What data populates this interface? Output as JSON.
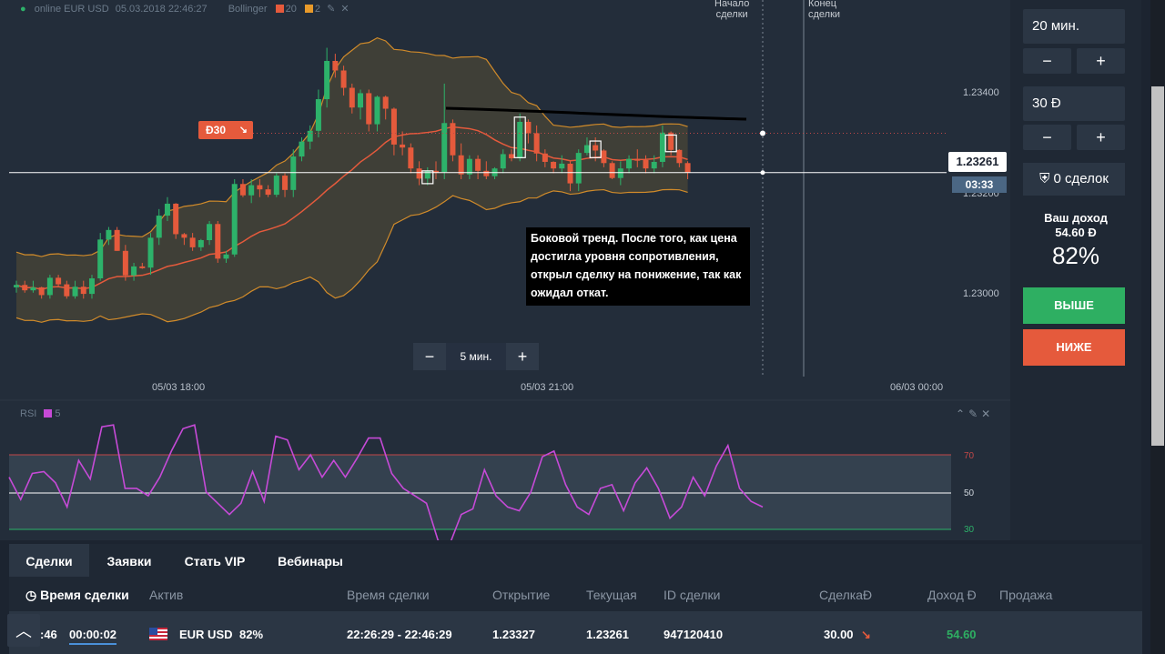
{
  "topbar": {
    "asset": "online EUR USD",
    "datetime": "05.03.2018 22:46:27",
    "indicator": "Bollinger",
    "param1": "20",
    "param2": "2",
    "color1": "#e55a3c",
    "color2": "#e89a2a"
  },
  "markers": {
    "start_line1": "Начало",
    "start_line2": "сделки",
    "end_line1": "Конец",
    "end_line2": "сделки"
  },
  "price_axis": [
    "1.23400",
    "1.23200",
    "1.23000"
  ],
  "current_price": "1.23261",
  "countdown": "03:33",
  "time_axis": [
    "05/03 18:00",
    "05/03 21:00",
    "06/03 00:00"
  ],
  "trade_badge": {
    "label": "Đ30",
    "arrow": "↘"
  },
  "annotation": "Боковой тренд. После того, как цена достигла уровня сопротивления, открыл сделку на понижение, так как ожидал откат.",
  "zoom": {
    "minus": "−",
    "label": "5 мин.",
    "plus": "+"
  },
  "rsi": {
    "name": "RSI",
    "period": "5",
    "levels": [
      "70",
      "50",
      "30"
    ]
  },
  "panel": {
    "time_value": "20 мин.",
    "amount_value": "30 Đ",
    "minus": "−",
    "plus": "+",
    "deals": "0 сделок",
    "income_label": "Ваш доход",
    "income_value": "54.60 Đ",
    "percent": "82%",
    "up_label": "ВЫШЕ",
    "down_label": "НИЖЕ",
    "up_color": "#2eaf62",
    "down_color": "#e55a3c"
  },
  "bottom": {
    "tabs": [
      "Сделки",
      "Заявки",
      "Стать VIP",
      "Вебинары"
    ],
    "headers": [
      "Время сделки",
      "Актив",
      "Время сделки",
      "Открытие",
      "Текущая",
      "ID сделки",
      "СделкаĐ",
      "Доход Đ",
      "Продажа"
    ],
    "row": {
      "time_left_cut": ":46",
      "timer": "00:00:02",
      "asset": "EUR USD",
      "percent": "82%",
      "range": "22:26:29 - 22:46:29",
      "open": "1.23327",
      "current": "1.23261",
      "id": "947120410",
      "amount": "30.00",
      "income": "54.60"
    }
  },
  "chart_data": {
    "type": "candlestick",
    "note": "",
    "price_range": [
      1.2288,
      1.2355
    ],
    "x_labels": [
      "05/03 18:00",
      "05/03 21:00",
      "06/03 00:00"
    ],
    "candles": [
      [
        1.23069,
        1.23073,
        1.2306,
        1.2308
      ],
      [
        1.23073,
        1.23064,
        1.2306,
        1.2308
      ],
      [
        1.23064,
        1.23069,
        1.2306,
        1.2308
      ],
      [
        1.23069,
        1.23056,
        1.2305,
        1.2307
      ],
      [
        1.23056,
        1.23085,
        1.2305,
        1.2309
      ],
      [
        1.23085,
        1.23074,
        1.2307,
        1.2309
      ],
      [
        1.23074,
        1.23054,
        1.2305,
        1.2308
      ],
      [
        1.23054,
        1.2307,
        1.2305,
        1.2308
      ],
      [
        1.2307,
        1.23058,
        1.2305,
        1.2308
      ],
      [
        1.23058,
        1.23084,
        1.2305,
        1.2309
      ],
      [
        1.23084,
        1.23149,
        1.2308,
        1.2316
      ],
      [
        1.23149,
        1.23165,
        1.2314,
        1.2317
      ],
      [
        1.23165,
        1.2313,
        1.2313,
        1.2317
      ],
      [
        1.2313,
        1.23089,
        1.2308,
        1.2314
      ],
      [
        1.23089,
        1.23104,
        1.2308,
        1.2311
      ],
      [
        1.23104,
        1.23102,
        1.231,
        1.2311
      ],
      [
        1.23102,
        1.23152,
        1.2309,
        1.2316
      ],
      [
        1.23152,
        1.23189,
        1.2314,
        1.232
      ],
      [
        1.23189,
        1.23209,
        1.2318,
        1.2322
      ],
      [
        1.23209,
        1.23158,
        1.2315,
        1.2321
      ],
      [
        1.23158,
        1.23152,
        1.2314,
        1.2316
      ],
      [
        1.23152,
        1.23136,
        1.2313,
        1.2316
      ],
      [
        1.23136,
        1.23148,
        1.2313,
        1.2315
      ],
      [
        1.23148,
        1.23175,
        1.2314,
        1.2318
      ],
      [
        1.23175,
        1.23117,
        1.2311,
        1.2318
      ],
      [
        1.23117,
        1.23124,
        1.2311,
        1.2313
      ],
      [
        1.23124,
        1.23242,
        1.2312,
        1.2325
      ],
      [
        1.23242,
        1.23223,
        1.2322,
        1.2325
      ],
      [
        1.23223,
        1.2324,
        1.2321,
        1.2325
      ],
      [
        1.2324,
        1.23233,
        1.2322,
        1.2325
      ],
      [
        1.23233,
        1.23224,
        1.2322,
        1.2324
      ],
      [
        1.23224,
        1.23256,
        1.2322,
        1.2326
      ],
      [
        1.23256,
        1.23232,
        1.2322,
        1.2326
      ],
      [
        1.23232,
        1.23288,
        1.2322,
        1.233
      ],
      [
        1.23288,
        1.23313,
        1.2328,
        1.2332
      ],
      [
        1.23313,
        1.23331,
        1.233,
        1.2334
      ],
      [
        1.23331,
        1.23384,
        1.2332,
        1.234
      ],
      [
        1.23384,
        1.23448,
        1.2337,
        1.2347
      ],
      [
        1.23448,
        1.23432,
        1.2342,
        1.2346
      ],
      [
        1.23432,
        1.23403,
        1.2339,
        1.2344
      ],
      [
        1.23403,
        1.2337,
        1.2336,
        1.2341
      ],
      [
        1.2337,
        1.23394,
        1.2335,
        1.234
      ],
      [
        1.23394,
        1.23342,
        1.2333,
        1.234
      ],
      [
        1.23342,
        1.23388,
        1.2333,
        1.2339
      ],
      [
        1.23388,
        1.23368,
        1.2335,
        1.2339
      ],
      [
        1.23368,
        1.23308,
        1.2329,
        1.2337
      ],
      [
        1.23308,
        1.23303,
        1.2329,
        1.2333
      ],
      [
        1.23303,
        1.23268,
        1.2326,
        1.2331
      ],
      [
        1.23268,
        1.23251,
        1.2324,
        1.2328
      ],
      [
        1.23251,
        1.23264,
        1.2324,
        1.2327
      ],
      [
        1.23264,
        1.23262,
        1.2325,
        1.2328
      ],
      [
        1.23262,
        1.23344,
        1.2325,
        1.2341
      ],
      [
        1.23344,
        1.2329,
        1.2328,
        1.2335
      ],
      [
        1.2329,
        1.23258,
        1.2325,
        1.2331
      ],
      [
        1.23258,
        1.23284,
        1.2325,
        1.2329
      ],
      [
        1.23284,
        1.23264,
        1.2325,
        1.2329
      ],
      [
        1.23264,
        1.23255,
        1.2325,
        1.2328
      ],
      [
        1.23255,
        1.23268,
        1.2325,
        1.2327
      ],
      [
        1.23268,
        1.23292,
        1.2326,
        1.233
      ],
      [
        1.23292,
        1.23285,
        1.2328,
        1.233
      ],
      [
        1.23285,
        1.23346,
        1.2328,
        1.2336
      ],
      [
        1.23346,
        1.23327,
        1.2331,
        1.2335
      ],
      [
        1.23327,
        1.23293,
        1.2328,
        1.2334
      ],
      [
        1.23293,
        1.23279,
        1.2327,
        1.233
      ],
      [
        1.23279,
        1.23268,
        1.2326,
        1.2328
      ],
      [
        1.23268,
        1.23276,
        1.2326,
        1.2329
      ],
      [
        1.23276,
        1.23243,
        1.2323,
        1.2328
      ],
      [
        1.23243,
        1.23294,
        1.2323,
        1.233
      ],
      [
        1.23294,
        1.23307,
        1.2329,
        1.2332
      ],
      [
        1.23307,
        1.23298,
        1.2328,
        1.2332
      ],
      [
        1.23298,
        1.23277,
        1.2327,
        1.233
      ],
      [
        1.23277,
        1.23252,
        1.2325,
        1.2328
      ],
      [
        1.23252,
        1.23268,
        1.2324,
        1.2328
      ],
      [
        1.23268,
        1.23284,
        1.2326,
        1.2329
      ],
      [
        1.23284,
        1.23282,
        1.2327,
        1.233
      ],
      [
        1.23282,
        1.23268,
        1.2326,
        1.2329
      ],
      [
        1.23268,
        1.23279,
        1.2326,
        1.2329
      ],
      [
        1.23279,
        1.23328,
        1.2327,
        1.2334
      ],
      [
        1.23328,
        1.23299,
        1.2329,
        1.2333
      ],
      [
        1.23299,
        1.23277,
        1.2327,
        1.233
      ],
      [
        1.23277,
        1.23261,
        1.2325,
        1.2328
      ]
    ],
    "boxed_candles": [
      49,
      60,
      69,
      78
    ],
    "rsi_values": [
      58,
      46,
      60,
      61,
      55,
      42,
      67,
      57,
      85,
      86,
      52,
      52,
      48,
      58,
      72,
      84,
      86,
      50,
      44,
      38,
      44,
      61,
      45,
      80,
      78,
      62,
      70,
      58,
      67,
      58,
      68,
      79,
      79,
      60,
      52,
      48,
      44,
      24,
      22,
      38,
      41,
      62,
      48,
      42,
      40,
      50,
      69,
      72,
      54,
      42,
      38,
      52,
      54,
      40,
      55,
      63,
      52,
      36,
      42,
      58,
      48,
      64,
      75,
      52,
      45,
      42
    ],
    "bollinger": {
      "period": "20",
      "deviations": "2"
    }
  }
}
